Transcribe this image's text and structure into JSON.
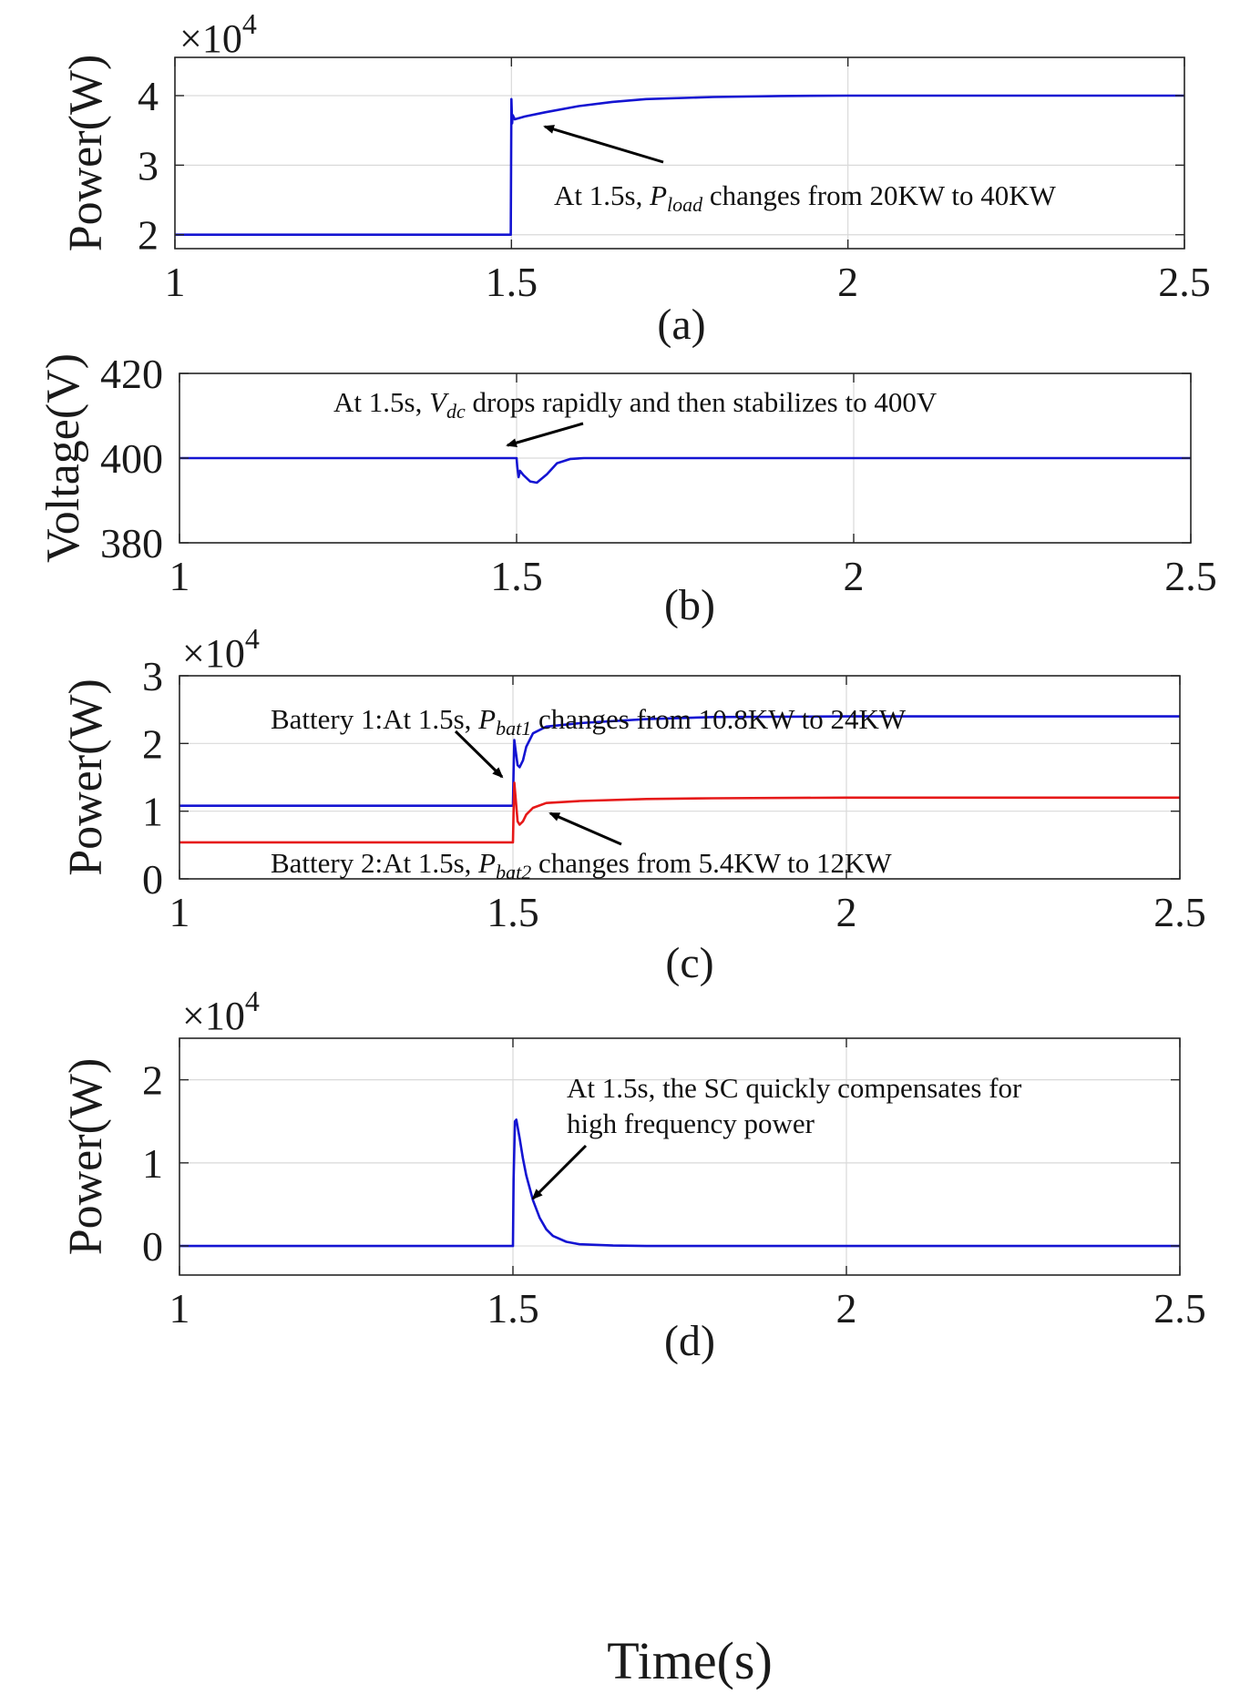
{
  "figure": {
    "xlabel": "Time(s)"
  },
  "chart_data": [
    {
      "type": "line",
      "panel_label": "(a)",
      "ylabel": "Power(W)",
      "multiplier": "×10",
      "multiplier_exp": "4",
      "xlim": [
        1,
        2.5
      ],
      "ylim": [
        1.8,
        4.55
      ],
      "xticks": [
        1,
        1.5,
        2,
        2.5
      ],
      "xtick_labels": [
        "1",
        "1.5",
        "2",
        "2.5"
      ],
      "yticks": [
        2,
        3,
        4
      ],
      "ytick_labels": [
        "2",
        "3",
        "4"
      ],
      "grid": true,
      "series": [
        {
          "name": "Pload",
          "color": "#1414d2",
          "x": [
            1,
            1.499,
            1.5,
            1.501,
            1.502,
            1.503,
            1.505,
            1.52,
            1.55,
            1.6,
            1.65,
            1.7,
            1.8,
            1.9,
            2.0,
            2.5
          ],
          "y": [
            2.0,
            2.0,
            3.95,
            3.6,
            3.72,
            3.7,
            3.66,
            3.7,
            3.76,
            3.85,
            3.91,
            3.95,
            3.98,
            3.995,
            4.0,
            4.0
          ]
        }
      ],
      "annotations": [
        {
          "text_parts": [
            "At 1.5s, ",
            "P",
            "load",
            " changes from 20KW to 40KW"
          ]
        }
      ]
    },
    {
      "type": "line",
      "panel_label": "(b)",
      "ylabel": "Voltage(V)",
      "xlim": [
        1,
        2.5
      ],
      "ylim": [
        380,
        420
      ],
      "xticks": [
        1,
        1.5,
        2,
        2.5
      ],
      "xtick_labels": [
        "1",
        "1.5",
        "2",
        "2.5"
      ],
      "yticks": [
        380,
        400,
        420
      ],
      "ytick_labels": [
        "380",
        "400",
        "420"
      ],
      "grid": true,
      "series": [
        {
          "name": "Vdc",
          "color": "#1414d2",
          "x": [
            1,
            1.5,
            1.501,
            1.503,
            1.505,
            1.51,
            1.52,
            1.53,
            1.545,
            1.56,
            1.58,
            1.6,
            2.5
          ],
          "y": [
            400,
            400,
            398,
            395.5,
            397,
            396,
            394.5,
            394.2,
            396.2,
            398.8,
            399.8,
            400,
            400
          ]
        }
      ],
      "annotations": [
        {
          "text_parts": [
            "At 1.5s, ",
            "V",
            "dc",
            " drops rapidly and then stabilizes to 400V"
          ]
        }
      ]
    },
    {
      "type": "line",
      "panel_label": "(c)",
      "ylabel": "Power(W)",
      "multiplier": "×10",
      "multiplier_exp": "4",
      "xlim": [
        1,
        2.5
      ],
      "ylim": [
        0,
        3
      ],
      "xticks": [
        1,
        1.5,
        2,
        2.5
      ],
      "xtick_labels": [
        "1",
        "1.5",
        "2",
        "2.5"
      ],
      "yticks": [
        0,
        1,
        2,
        3
      ],
      "ytick_labels": [
        "0",
        "1",
        "2",
        "3"
      ],
      "grid": true,
      "series": [
        {
          "name": "Pbat1",
          "color": "#1414d2",
          "x": [
            1,
            1.5,
            1.501,
            1.502,
            1.504,
            1.507,
            1.51,
            1.515,
            1.52,
            1.53,
            1.55,
            1.6,
            1.7,
            1.8,
            2.0,
            2.5
          ],
          "y": [
            1.08,
            1.08,
            1.6,
            2.05,
            1.9,
            1.68,
            1.65,
            1.75,
            1.95,
            2.15,
            2.25,
            2.3,
            2.36,
            2.39,
            2.4,
            2.4
          ]
        },
        {
          "name": "Pbat2",
          "color": "#e61919",
          "x": [
            1,
            1.5,
            1.501,
            1.502,
            1.504,
            1.507,
            1.51,
            1.515,
            1.52,
            1.53,
            1.55,
            1.6,
            1.7,
            1.8,
            2.0,
            2.5
          ],
          "y": [
            0.54,
            0.54,
            1.0,
            1.42,
            1.2,
            0.85,
            0.8,
            0.85,
            0.95,
            1.05,
            1.12,
            1.15,
            1.18,
            1.19,
            1.2,
            1.2
          ]
        }
      ],
      "annotations": [
        {
          "text_parts": [
            "Battery 1:At 1.5s, ",
            "P",
            "bat1",
            " changes from 10.8KW to 24KW"
          ]
        },
        {
          "text_parts": [
            "Battery 2:At 1.5s, ",
            "P",
            "bat2",
            " changes from 5.4KW to 12KW"
          ]
        }
      ]
    },
    {
      "type": "line",
      "panel_label": "(d)",
      "ylabel": "Power(W)",
      "multiplier": "×10",
      "multiplier_exp": "4",
      "xlim": [
        1,
        2.5
      ],
      "ylim": [
        -0.35,
        2.5
      ],
      "xticks": [
        1,
        1.5,
        2,
        2.5
      ],
      "xtick_labels": [
        "1",
        "1.5",
        "2",
        "2.5"
      ],
      "yticks": [
        0,
        1,
        2
      ],
      "ytick_labels": [
        "0",
        "1",
        "2"
      ],
      "grid": true,
      "series": [
        {
          "name": "Psc",
          "color": "#1414d2",
          "x": [
            1,
            1.5,
            1.501,
            1.503,
            1.505,
            1.51,
            1.515,
            1.52,
            1.53,
            1.54,
            1.55,
            1.56,
            1.58,
            1.6,
            1.65,
            1.7,
            2.5
          ],
          "y": [
            0,
            0,
            0.8,
            1.5,
            1.52,
            1.3,
            1.05,
            0.85,
            0.55,
            0.34,
            0.2,
            0.12,
            0.05,
            0.02,
            0.005,
            0,
            0
          ]
        }
      ],
      "annotations": [
        {
          "lines": [
            "At 1.5s, the SC quickly compensates for",
            "high frequency power"
          ]
        }
      ]
    }
  ]
}
